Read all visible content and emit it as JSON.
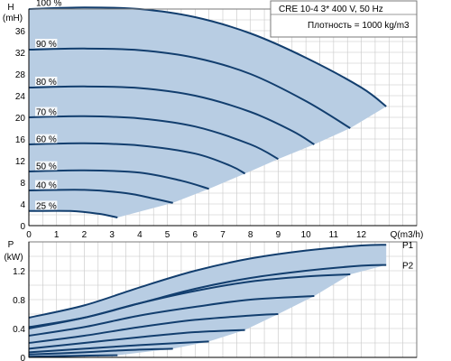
{
  "chart_data": [
    {
      "type": "line",
      "title": "CRE 10-4    3* 400 V, 50 Hz",
      "subtitle": "Плотность = 1000 kg/m3",
      "ylabel": "H",
      "yunit": "(mH)",
      "xlabel": "Q(m3/h)",
      "xlim": [
        0,
        14
      ],
      "ylim": [
        0,
        40
      ],
      "x_ticks": [
        "0",
        "1",
        "2",
        "3",
        "4",
        "5",
        "6",
        "7",
        "8",
        "9",
        "10",
        "11",
        "12"
      ],
      "y_ticks": [
        "0",
        "4",
        "8",
        "12",
        "16",
        "20",
        "24",
        "28",
        "32",
        "36"
      ],
      "grid": true,
      "series": [
        {
          "name": "100 %",
          "points": [
            [
              0,
              40
            ],
            [
              2,
              40.3
            ],
            [
              4,
              40
            ],
            [
              6,
              38.5
            ],
            [
              8,
              35.5
            ],
            [
              10,
              31
            ],
            [
              12,
              25.5
            ],
            [
              12.9,
              22
            ]
          ]
        },
        {
          "name": "90 %",
          "points": [
            [
              0,
              32.5
            ],
            [
              2,
              32.7
            ],
            [
              4,
              32.4
            ],
            [
              6,
              31
            ],
            [
              8,
              28
            ],
            [
              10,
              23
            ],
            [
              11.6,
              18
            ]
          ]
        },
        {
          "name": "80 %",
          "points": [
            [
              0,
              25.5
            ],
            [
              2,
              25.7
            ],
            [
              4,
              25.4
            ],
            [
              6,
              24
            ],
            [
              8,
              21
            ],
            [
              9.5,
              17.5
            ],
            [
              10.3,
              15
            ]
          ]
        },
        {
          "name": "70 %",
          "points": [
            [
              0,
              20
            ],
            [
              2,
              20.2
            ],
            [
              4,
              19.8
            ],
            [
              6,
              18.3
            ],
            [
              8,
              15
            ],
            [
              9,
              12.3
            ]
          ]
        },
        {
          "name": "60 %",
          "points": [
            [
              0,
              15
            ],
            [
              2,
              15.2
            ],
            [
              4,
              14.8
            ],
            [
              6,
              13.3
            ],
            [
              7.3,
              11
            ],
            [
              7.8,
              9.6
            ]
          ]
        },
        {
          "name": "50 %",
          "points": [
            [
              0,
              10
            ],
            [
              2,
              10.2
            ],
            [
              4,
              9.8
            ],
            [
              5.5,
              8.3
            ],
            [
              6.5,
              6.8
            ]
          ]
        },
        {
          "name": "40 %",
          "points": [
            [
              0,
              6.5
            ],
            [
              2,
              6.6
            ],
            [
              3.5,
              6
            ],
            [
              4.5,
              5
            ],
            [
              5.2,
              4.2
            ]
          ]
        },
        {
          "name": "25 %",
          "points": [
            [
              0,
              2.7
            ],
            [
              1.5,
              2.7
            ],
            [
              2.5,
              2.2
            ],
            [
              3.2,
              1.5
            ]
          ]
        }
      ],
      "region_fill": "#b8cde3",
      "line_color": "#123e6e"
    },
    {
      "type": "line",
      "ylabel": "P",
      "yunit": "(kW)",
      "xlim": [
        0,
        14
      ],
      "ylim": [
        0,
        1.6
      ],
      "y_ticks": [
        "0",
        "0.4",
        "0.8",
        "1.2"
      ],
      "grid": true,
      "series": [
        {
          "name": "P1",
          "points": [
            [
              0,
              0.55
            ],
            [
              2,
              0.72
            ],
            [
              4,
              0.97
            ],
            [
              6,
              1.2
            ],
            [
              8,
              1.37
            ],
            [
              10,
              1.48
            ],
            [
              12,
              1.55
            ],
            [
              12.9,
              1.56
            ]
          ]
        },
        {
          "name": "P2",
          "points": [
            [
              0,
              0.42
            ],
            [
              2,
              0.55
            ],
            [
              4,
              0.75
            ],
            [
              6,
              0.95
            ],
            [
              8,
              1.1
            ],
            [
              10,
              1.2
            ],
            [
              12,
              1.27
            ],
            [
              12.9,
              1.28
            ]
          ]
        },
        {
          "points": [
            [
              0,
              0.4
            ],
            [
              2,
              0.55
            ],
            [
              4,
              0.75
            ],
            [
              6,
              0.92
            ],
            [
              8,
              1.05
            ],
            [
              10,
              1.12
            ],
            [
              11.6,
              1.15
            ]
          ]
        },
        {
          "points": [
            [
              0,
              0.3
            ],
            [
              2,
              0.42
            ],
            [
              4,
              0.58
            ],
            [
              6,
              0.7
            ],
            [
              8,
              0.8
            ],
            [
              10.3,
              0.85
            ]
          ]
        },
        {
          "points": [
            [
              0,
              0.2
            ],
            [
              2,
              0.3
            ],
            [
              4,
              0.42
            ],
            [
              6,
              0.52
            ],
            [
              8,
              0.58
            ],
            [
              9,
              0.6
            ]
          ]
        },
        {
          "points": [
            [
              0,
              0.12
            ],
            [
              2,
              0.2
            ],
            [
              4,
              0.28
            ],
            [
              6,
              0.35
            ],
            [
              7.8,
              0.38
            ]
          ]
        },
        {
          "points": [
            [
              0,
              0.07
            ],
            [
              2,
              0.12
            ],
            [
              4,
              0.17
            ],
            [
              6.5,
              0.22
            ]
          ]
        },
        {
          "points": [
            [
              0,
              0.04
            ],
            [
              2,
              0.07
            ],
            [
              3.5,
              0.1
            ],
            [
              5.2,
              0.12
            ]
          ]
        },
        {
          "points": [
            [
              0,
              0.01
            ],
            [
              1.5,
              0.02
            ],
            [
              3.2,
              0.03
            ]
          ]
        }
      ],
      "region_fill": "#b8cde3",
      "line_color": "#123e6e"
    }
  ]
}
